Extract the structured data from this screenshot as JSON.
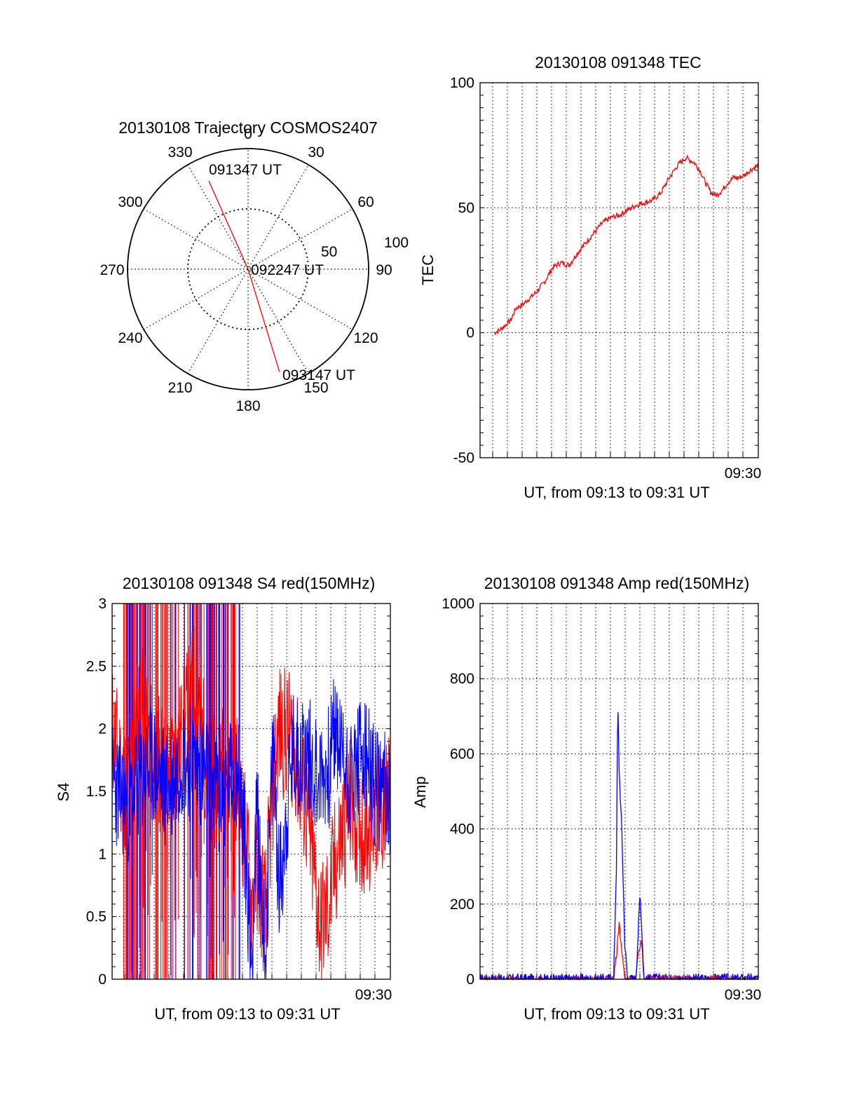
{
  "chart_data": [
    {
      "type": "polar",
      "title": "20130108 Trajectory COSMOS2407",
      "angle_ticks": [
        "0",
        "30",
        "60",
        "90",
        "120",
        "150",
        "180",
        "210",
        "240",
        "270",
        "300",
        "330"
      ],
      "radial_ticks": [
        "50",
        "100"
      ],
      "colors": {
        "track": "#ff0000"
      },
      "track": [
        {
          "azimuth": 336,
          "elevation": 18
        },
        {
          "azimuth": 90,
          "elevation": 90
        },
        {
          "azimuth": 163,
          "elevation": 10
        }
      ],
      "annotations": [
        {
          "text": "091347 UT",
          "azimuth": 350,
          "elevation": 15
        },
        {
          "text": "092247 UT",
          "azimuth": 82,
          "elevation": 82
        },
        {
          "text": "093147 UT",
          "azimuth": 157,
          "elevation": 6
        }
      ]
    },
    {
      "type": "line",
      "title": "20130108 091348 TEC",
      "xlabel": "UT, from 09:13 to 09:31 UT",
      "ylabel": "TEC",
      "xlim": [
        0,
        1.0
      ],
      "ylim": [
        -50,
        100
      ],
      "yticks": [
        100,
        50,
        0,
        -50
      ],
      "xtick_label": "09:30",
      "grid": true,
      "colors": {
        "tec": "#ff0000"
      },
      "series": [
        {
          "x": [
            0.05,
            0.07,
            0.09,
            0.11,
            0.13,
            0.15,
            0.17,
            0.2,
            0.23,
            0.26,
            0.29,
            0.32,
            0.35,
            0.38,
            0.41,
            0.44,
            0.47,
            0.5,
            0.53,
            0.56,
            0.59,
            0.62,
            0.65,
            0.68,
            0.71,
            0.74,
            0.77,
            0.79,
            0.81,
            0.83,
            0.85,
            0.87,
            0.89,
            0.91,
            0.93,
            0.95,
            0.97,
            1.0
          ],
          "values": [
            0,
            1,
            3,
            5,
            10,
            11,
            13,
            16,
            20,
            26,
            28,
            27,
            32,
            36,
            40,
            44,
            46,
            47,
            49,
            51,
            52,
            53,
            56,
            62,
            67,
            70,
            68,
            65,
            60,
            56,
            55,
            57,
            60,
            62,
            62,
            63,
            65,
            67
          ]
        }
      ]
    },
    {
      "type": "line",
      "title": "20130108 091348 S4 red(150MHz)",
      "xlabel": "UT, from 09:13 to 09:31 UT",
      "ylabel": "S4",
      "xlim": [
        0,
        1.0
      ],
      "ylim": [
        0,
        3
      ],
      "yticks": [
        "3",
        "2.5",
        "2",
        "1.5",
        "1",
        "0.5",
        "0"
      ],
      "xtick_label": "09:30",
      "grid": true,
      "colors": {
        "red": "#ff0000",
        "blue": "#0000ff"
      },
      "series": [
        {
          "x": [
            0.0,
            0.05,
            0.1,
            0.15,
            0.2,
            0.25,
            0.3,
            0.35,
            0.4,
            0.45,
            0.48,
            0.5,
            0.52,
            0.55,
            0.58,
            0.6,
            0.65,
            0.7,
            0.75,
            0.78,
            0.8,
            0.85,
            0.9,
            0.95,
            1.0
          ],
          "values": [
            2.0,
            1.5,
            2.2,
            1.8,
            1.6,
            1.9,
            2.4,
            1.5,
            1.7,
            1.6,
            1.1,
            0.6,
            0.9,
            0.5,
            1.6,
            2.0,
            1.9,
            1.3,
            0.4,
            0.6,
            0.9,
            1.4,
            1.2,
            1.3,
            1.4
          ]
        },
        {
          "x": [
            0.0,
            0.05,
            0.1,
            0.15,
            0.2,
            0.25,
            0.3,
            0.35,
            0.4,
            0.45,
            0.48,
            0.5,
            0.52,
            0.55,
            0.58,
            0.6,
            0.65,
            0.7,
            0.75,
            0.78,
            0.8,
            0.85,
            0.9,
            0.95,
            1.0
          ],
          "values": [
            1.6,
            1.4,
            1.6,
            1.7,
            1.5,
            1.8,
            1.7,
            1.6,
            1.5,
            1.7,
            1.0,
            0.1,
            1.3,
            0.2,
            1.9,
            0.7,
            1.8,
            1.8,
            1.6,
            1.7,
            2.0,
            1.6,
            1.8,
            1.5,
            1.5
          ]
        }
      ]
    },
    {
      "type": "line",
      "title": "20130108 091348 Amp red(150MHz)",
      "xlabel": "UT, from 09:13 to 09:31 UT",
      "ylabel": "Amp",
      "xlim": [
        0,
        1.0
      ],
      "ylim": [
        0,
        1000
      ],
      "yticks": [
        1000,
        800,
        600,
        400,
        200,
        0
      ],
      "xtick_label": "09:30",
      "grid": true,
      "colors": {
        "red": "#ff0000",
        "blue": "#0000ff"
      },
      "series": [
        {
          "x": [
            0.0,
            0.48,
            0.49,
            0.5,
            0.51,
            0.52,
            0.53,
            0.56,
            0.57,
            0.58,
            0.59,
            0.8,
            0.85,
            0.9,
            1.0
          ],
          "values": [
            0,
            0,
            60,
            150,
            70,
            0,
            0,
            0,
            80,
            100,
            0,
            2,
            3,
            2,
            0
          ]
        },
        {
          "x": [
            0.0,
            0.48,
            0.49,
            0.495,
            0.5,
            0.51,
            0.52,
            0.53,
            0.56,
            0.57,
            0.575,
            0.58,
            0.59,
            1.0
          ],
          "values": [
            0,
            0,
            300,
            740,
            560,
            380,
            100,
            0,
            0,
            150,
            230,
            150,
            0,
            0
          ]
        }
      ]
    }
  ]
}
